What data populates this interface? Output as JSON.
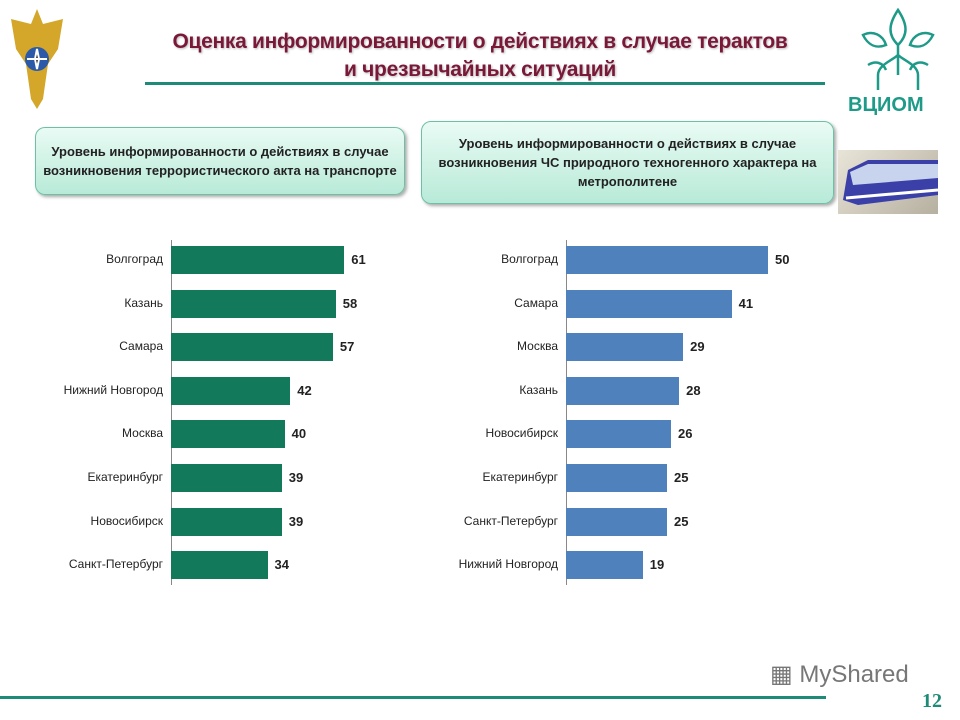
{
  "header": {
    "title_line1": "Оценка информированности о действиях в случае терактов",
    "title_line2": "и чрезвычайных ситуаций",
    "logo_right_text": "ВЦИОМ"
  },
  "footer": {
    "page_number": "12",
    "watermark": "MyShared"
  },
  "colors": {
    "left_bars": "#127a5a",
    "right_bars": "#4f81bd",
    "accent": "#1e8a78",
    "title": "#7a1838"
  },
  "chart_data": [
    {
      "type": "bar",
      "orientation": "horizontal",
      "title": "Уровень информированности  о действиях  в случае возникновения террористического акта на транспорте",
      "categories": [
        "Волгоград",
        "Казань",
        "Самара",
        "Нижний Новгород",
        "Москва",
        "Екатеринбург",
        "Новосибирск",
        "Санкт-Петербург"
      ],
      "values": [
        61,
        58,
        57,
        42,
        40,
        39,
        39,
        34
      ],
      "xlim": [
        0,
        61
      ],
      "grid": false
    },
    {
      "type": "bar",
      "orientation": "horizontal",
      "title": "Уровень информированности  о действиях  в случае возникновения ЧС природного техногенного характера на метрополитене",
      "categories": [
        "Волгоград",
        "Самара",
        "Москва",
        "Казань",
        "Новосибирск",
        "Екатеринбург",
        "Санкт-Петербург",
        "Нижний Новгород"
      ],
      "values": [
        50,
        41,
        29,
        28,
        26,
        25,
        25,
        19
      ],
      "xlim": [
        0,
        50
      ],
      "grid": false
    }
  ]
}
